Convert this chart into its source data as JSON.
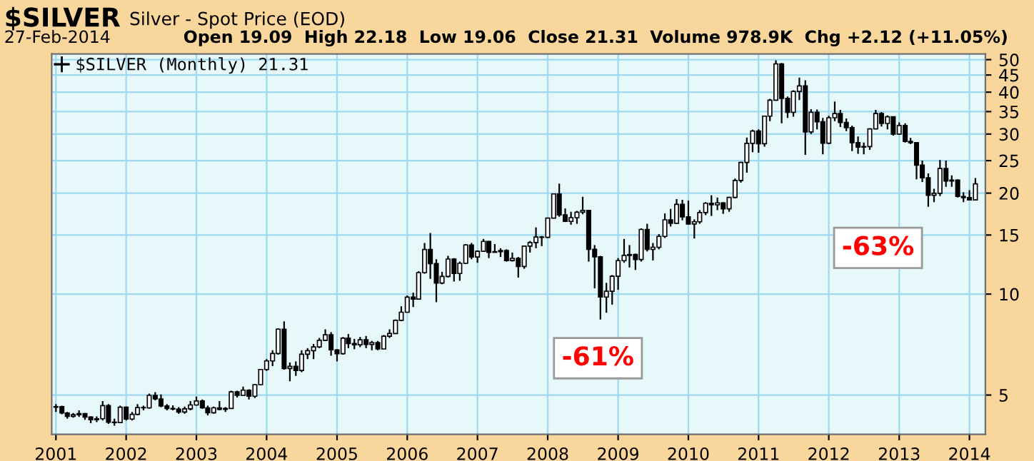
{
  "chart_data": {
    "type": "candlestick",
    "title": "$SILVER",
    "subtitle": "Silver - Spot Price (EOD)",
    "annotations": [
      "27-Feb-2014",
      "Open 19.09  High 22.18  Low 19.06  Close 21.31  Volume 978.9K  Chg +2.12 (+11.05%)",
      "-61%",
      "-63%"
    ],
    "log": "y",
    "grid": true,
    "legend": "top left",
    "xlim": [
      "2000-12-10",
      "2014-03-25"
    ],
    "xticks": [
      "2001",
      "2002",
      "2003",
      "2004",
      "2005",
      "2006",
      "2007",
      "2008",
      "2009",
      "2010",
      "2011",
      "2012",
      "2013",
      "2014"
    ],
    "ylim": [
      3.82,
      52
    ],
    "yticks": [
      5,
      10,
      15,
      20,
      25,
      30,
      35,
      40,
      45,
      50
    ],
    "x": [
      "2001-01",
      "2001-02",
      "2001-03",
      "2001-04",
      "2001-05",
      "2001-06",
      "2001-07",
      "2001-08",
      "2001-09",
      "2001-10",
      "2001-11",
      "2001-12",
      "2002-01",
      "2002-02",
      "2002-03",
      "2002-04",
      "2002-05",
      "2002-06",
      "2002-07",
      "2002-08",
      "2002-09",
      "2002-10",
      "2002-11",
      "2002-12",
      "2003-01",
      "2003-02",
      "2003-03",
      "2003-04",
      "2003-05",
      "2003-06",
      "2003-07",
      "2003-08",
      "2003-09",
      "2003-10",
      "2003-11",
      "2003-12",
      "2004-01",
      "2004-02",
      "2004-03",
      "2004-04",
      "2004-05",
      "2004-06",
      "2004-07",
      "2004-08",
      "2004-09",
      "2004-10",
      "2004-11",
      "2004-12",
      "2005-01",
      "2005-02",
      "2005-03",
      "2005-04",
      "2005-05",
      "2005-06",
      "2005-07",
      "2005-08",
      "2005-09",
      "2005-10",
      "2005-11",
      "2005-12",
      "2006-01",
      "2006-02",
      "2006-03",
      "2006-04",
      "2006-05",
      "2006-06",
      "2006-07",
      "2006-08",
      "2006-09",
      "2006-10",
      "2006-11",
      "2006-12",
      "2007-01",
      "2007-02",
      "2007-03",
      "2007-04",
      "2007-05",
      "2007-06",
      "2007-07",
      "2007-08",
      "2007-09",
      "2007-10",
      "2007-11",
      "2007-12",
      "2008-01",
      "2008-02",
      "2008-03",
      "2008-04",
      "2008-05",
      "2008-06",
      "2008-07",
      "2008-08",
      "2008-09",
      "2008-10",
      "2008-11",
      "2008-12",
      "2009-01",
      "2009-02",
      "2009-03",
      "2009-04",
      "2009-05",
      "2009-06",
      "2009-07",
      "2009-08",
      "2009-09",
      "2009-10",
      "2009-11",
      "2009-12",
      "2010-01",
      "2010-02",
      "2010-03",
      "2010-04",
      "2010-05",
      "2010-06",
      "2010-07",
      "2010-08",
      "2010-09",
      "2010-10",
      "2010-11",
      "2010-12",
      "2011-01",
      "2011-02",
      "2011-03",
      "2011-04",
      "2011-05",
      "2011-06",
      "2011-07",
      "2011-08",
      "2011-09",
      "2011-10",
      "2011-11",
      "2011-12",
      "2012-01",
      "2012-02",
      "2012-03",
      "2012-04",
      "2012-05",
      "2012-06",
      "2012-07",
      "2012-08",
      "2012-09",
      "2012-10",
      "2012-11",
      "2012-12",
      "2013-01",
      "2013-02",
      "2013-03",
      "2013-04",
      "2013-05",
      "2013-06",
      "2013-07",
      "2013-08",
      "2013-09",
      "2013-10",
      "2013-11",
      "2013-12",
      "2014-01",
      "2014-02"
    ],
    "series": [
      {
        "name": "$SILVER (Monthly) 21.31",
        "color": "#000000",
        "ohlc": [
          [
            4.6,
            4.7,
            4.45,
            4.62
          ],
          [
            4.62,
            4.65,
            4.38,
            4.42
          ],
          [
            4.42,
            4.45,
            4.25,
            4.32
          ],
          [
            4.32,
            4.42,
            4.28,
            4.37
          ],
          [
            4.37,
            4.5,
            4.3,
            4.4
          ],
          [
            4.4,
            4.42,
            4.22,
            4.3
          ],
          [
            4.3,
            4.32,
            4.12,
            4.22
          ],
          [
            4.22,
            4.32,
            4.15,
            4.25
          ],
          [
            4.25,
            4.8,
            4.2,
            4.65
          ],
          [
            4.65,
            4.7,
            4.1,
            4.15
          ],
          [
            4.15,
            4.25,
            4.05,
            4.14
          ],
          [
            4.14,
            4.65,
            4.12,
            4.6
          ],
          [
            4.6,
            4.62,
            4.2,
            4.24
          ],
          [
            4.24,
            4.45,
            4.2,
            4.38
          ],
          [
            4.38,
            4.7,
            4.35,
            4.59
          ],
          [
            4.59,
            4.65,
            4.5,
            4.58
          ],
          [
            4.58,
            5.05,
            4.55,
            4.99
          ],
          [
            4.99,
            5.1,
            4.82,
            4.87
          ],
          [
            4.87,
            5.02,
            4.6,
            4.64
          ],
          [
            4.64,
            4.7,
            4.5,
            4.56
          ],
          [
            4.56,
            4.66,
            4.5,
            4.54
          ],
          [
            4.54,
            4.6,
            4.4,
            4.45
          ],
          [
            4.45,
            4.62,
            4.4,
            4.55
          ],
          [
            4.55,
            4.8,
            4.5,
            4.67
          ],
          [
            4.67,
            4.95,
            4.65,
            4.8
          ],
          [
            4.8,
            4.85,
            4.55,
            4.58
          ],
          [
            4.58,
            4.65,
            4.35,
            4.43
          ],
          [
            4.43,
            4.62,
            4.4,
            4.58
          ],
          [
            4.58,
            4.8,
            4.5,
            4.53
          ],
          [
            4.53,
            4.6,
            4.45,
            4.56
          ],
          [
            4.56,
            5.15,
            4.55,
            5.11
          ],
          [
            5.11,
            5.15,
            4.92,
            4.99
          ],
          [
            4.99,
            5.3,
            4.98,
            5.17
          ],
          [
            5.17,
            5.2,
            4.85,
            4.96
          ],
          [
            4.96,
            5.4,
            4.9,
            5.37
          ],
          [
            5.37,
            5.98,
            5.35,
            5.96
          ],
          [
            5.96,
            6.4,
            5.9,
            6.32
          ],
          [
            6.32,
            6.8,
            6.1,
            6.65
          ],
          [
            6.65,
            7.9,
            6.6,
            7.86
          ],
          [
            7.86,
            8.29,
            5.95,
            6.0
          ],
          [
            6.0,
            6.25,
            5.5,
            6.09
          ],
          [
            6.09,
            6.3,
            5.7,
            5.92
          ],
          [
            5.92,
            6.8,
            5.85,
            6.62
          ],
          [
            6.62,
            6.9,
            6.4,
            6.78
          ],
          [
            6.78,
            7.1,
            6.4,
            6.96
          ],
          [
            6.96,
            7.4,
            6.9,
            7.28
          ],
          [
            7.28,
            7.85,
            7.25,
            7.56
          ],
          [
            7.56,
            7.7,
            6.55,
            6.82
          ],
          [
            6.82,
            6.85,
            6.3,
            6.64
          ],
          [
            6.64,
            7.45,
            6.6,
            7.39
          ],
          [
            7.39,
            7.6,
            6.9,
            7.12
          ],
          [
            7.12,
            7.35,
            6.85,
            7.06
          ],
          [
            7.06,
            7.45,
            6.95,
            7.31
          ],
          [
            7.31,
            7.5,
            6.9,
            7.08
          ],
          [
            7.08,
            7.25,
            6.8,
            7.17
          ],
          [
            7.17,
            7.25,
            6.8,
            6.86
          ],
          [
            6.86,
            7.55,
            6.85,
            7.49
          ],
          [
            7.49,
            7.85,
            7.4,
            7.63
          ],
          [
            7.63,
            8.4,
            7.6,
            8.35
          ],
          [
            8.35,
            9.2,
            8.3,
            8.83
          ],
          [
            8.83,
            9.9,
            8.8,
            9.79
          ],
          [
            9.79,
            10.1,
            9.15,
            9.66
          ],
          [
            9.66,
            11.7,
            9.65,
            11.59
          ],
          [
            11.59,
            14.2,
            11.5,
            13.58
          ],
          [
            13.58,
            15.21,
            11.1,
            12.33
          ],
          [
            12.33,
            12.7,
            9.46,
            10.79
          ],
          [
            10.79,
            11.65,
            10.7,
            11.29
          ],
          [
            11.29,
            13.0,
            11.2,
            12.72
          ],
          [
            12.72,
            12.8,
            10.9,
            11.52
          ],
          [
            11.52,
            12.5,
            10.96,
            12.35
          ],
          [
            12.35,
            14.1,
            12.3,
            14.01
          ],
          [
            14.01,
            14.2,
            12.7,
            12.9
          ],
          [
            12.9,
            13.5,
            12.4,
            13.42
          ],
          [
            13.42,
            14.6,
            13.4,
            14.36
          ],
          [
            14.36,
            14.4,
            12.8,
            13.32
          ],
          [
            13.32,
            14.1,
            13.3,
            13.38
          ],
          [
            13.38,
            13.7,
            12.9,
            13.49
          ],
          [
            13.49,
            13.6,
            12.5,
            12.59
          ],
          [
            12.59,
            13.3,
            12.5,
            12.78
          ],
          [
            12.78,
            12.9,
            11.2,
            12.09
          ],
          [
            12.09,
            13.9,
            11.9,
            13.9
          ],
          [
            13.9,
            14.4,
            13.3,
            14.24
          ],
          [
            14.24,
            15.8,
            13.7,
            14.8
          ],
          [
            14.8,
            14.9,
            13.9,
            14.76
          ],
          [
            14.76,
            16.9,
            14.7,
            16.85
          ],
          [
            16.85,
            19.9,
            16.8,
            19.89
          ],
          [
            19.89,
            21.35,
            17.0,
            17.23
          ],
          [
            17.23,
            18.0,
            16.4,
            16.47
          ],
          [
            16.47,
            17.6,
            16.1,
            16.9
          ],
          [
            16.9,
            17.7,
            16.2,
            17.55
          ],
          [
            17.55,
            19.5,
            17.3,
            17.76
          ],
          [
            17.76,
            17.8,
            12.5,
            13.6
          ],
          [
            13.6,
            14.0,
            10.4,
            12.92
          ],
          [
            12.92,
            13.0,
            8.4,
            9.8
          ],
          [
            9.8,
            10.8,
            8.8,
            10.2
          ],
          [
            10.2,
            11.4,
            9.3,
            11.3
          ],
          [
            11.3,
            12.8,
            10.3,
            12.58
          ],
          [
            12.58,
            14.6,
            12.4,
            13.04
          ],
          [
            13.04,
            14.0,
            12.0,
            13.12
          ],
          [
            13.12,
            13.2,
            11.8,
            12.68
          ],
          [
            12.68,
            15.7,
            12.5,
            15.59
          ],
          [
            15.59,
            16.2,
            13.4,
            13.59
          ],
          [
            13.59,
            14.2,
            12.6,
            13.79
          ],
          [
            13.79,
            15.1,
            13.6,
            14.86
          ],
          [
            14.86,
            17.4,
            14.7,
            16.65
          ],
          [
            16.65,
            17.95,
            15.9,
            16.26
          ],
          [
            16.26,
            19.2,
            16.2,
            18.52
          ],
          [
            18.52,
            19.1,
            16.6,
            16.99
          ],
          [
            16.99,
            19.0,
            16.1,
            16.18
          ],
          [
            16.18,
            16.7,
            14.65,
            16.43
          ],
          [
            16.43,
            17.8,
            16.2,
            17.5
          ],
          [
            17.5,
            18.8,
            17.2,
            18.66
          ],
          [
            18.66,
            19.7,
            17.1,
            18.46
          ],
          [
            18.46,
            19.4,
            17.8,
            18.71
          ],
          [
            18.71,
            18.8,
            17.35,
            17.95
          ],
          [
            17.95,
            19.5,
            17.6,
            19.42
          ],
          [
            19.42,
            22.1,
            19.3,
            21.82
          ],
          [
            21.82,
            24.8,
            21.5,
            24.68
          ],
          [
            24.68,
            29.3,
            23.0,
            28.14
          ],
          [
            28.14,
            30.9,
            26.5,
            30.63
          ],
          [
            30.63,
            31.0,
            26.4,
            28.08
          ],
          [
            28.08,
            34.0,
            27.5,
            33.93
          ],
          [
            33.93,
            38.2,
            32.8,
            37.87
          ],
          [
            37.87,
            49.8,
            37.7,
            48.58
          ],
          [
            48.58,
            48.9,
            32.3,
            38.32
          ],
          [
            38.32,
            38.8,
            33.5,
            34.82
          ],
          [
            34.82,
            40.5,
            33.8,
            40.21
          ],
          [
            40.21,
            44.2,
            37.9,
            41.76
          ],
          [
            41.76,
            43.4,
            26.0,
            30.45
          ],
          [
            30.45,
            35.6,
            30.0,
            34.83
          ],
          [
            34.83,
            35.5,
            31.0,
            32.64
          ],
          [
            32.64,
            33.5,
            26.1,
            28.18
          ],
          [
            28.18,
            34.0,
            28.0,
            33.55
          ],
          [
            33.55,
            37.5,
            32.8,
            34.54
          ],
          [
            34.54,
            35.4,
            31.5,
            32.48
          ],
          [
            32.48,
            33.4,
            30.6,
            31.34
          ],
          [
            31.34,
            31.8,
            26.7,
            28.28
          ],
          [
            28.28,
            29.5,
            26.2,
            27.43
          ],
          [
            27.43,
            28.3,
            26.1,
            27.53
          ],
          [
            27.53,
            31.2,
            26.9,
            31.09
          ],
          [
            31.09,
            35.4,
            31.0,
            34.53
          ],
          [
            34.53,
            34.9,
            31.6,
            32.27
          ],
          [
            32.27,
            34.1,
            31.0,
            33.77
          ],
          [
            33.77,
            33.9,
            29.7,
            30.0
          ],
          [
            30.0,
            32.5,
            29.9,
            31.82
          ],
          [
            31.82,
            32.3,
            28.3,
            28.53
          ],
          [
            28.53,
            29.2,
            28.0,
            28.29
          ],
          [
            28.29,
            28.4,
            22.0,
            24.23
          ],
          [
            24.23,
            25.0,
            21.6,
            22.22
          ],
          [
            22.22,
            22.9,
            18.2,
            19.71
          ],
          [
            19.71,
            20.6,
            18.8,
            19.97
          ],
          [
            19.97,
            25.1,
            19.6,
            23.69
          ],
          [
            23.69,
            25.0,
            20.9,
            21.74
          ],
          [
            21.74,
            22.6,
            20.9,
            21.88
          ],
          [
            21.88,
            22.0,
            19.4,
            19.55
          ],
          [
            19.55,
            20.1,
            18.8,
            19.39
          ],
          [
            19.39,
            20.4,
            19.0,
            19.09
          ],
          [
            19.09,
            22.18,
            19.06,
            21.31
          ]
        ]
      }
    ]
  }
}
